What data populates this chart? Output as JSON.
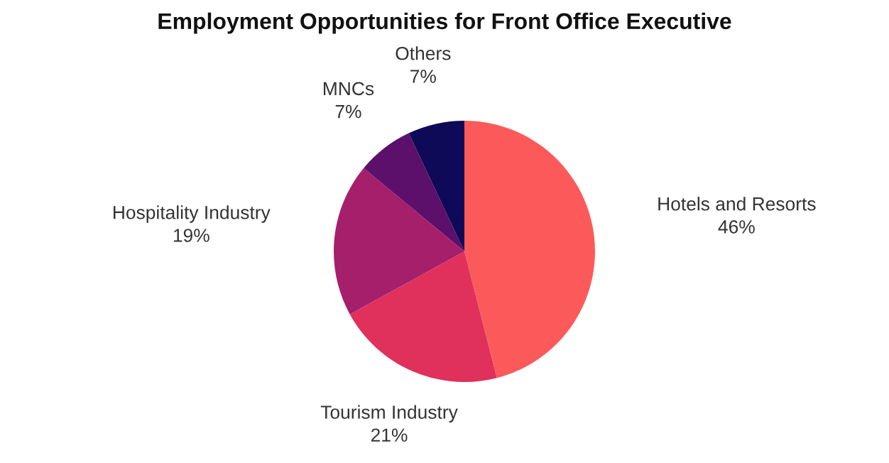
{
  "chart_data": {
    "type": "pie",
    "title": "Employment Opportunities for Front Office Executive",
    "categories": [
      "Hotels and Resorts",
      "Tourism Industry",
      "Hospitality Industry",
      "MNCs",
      "Others"
    ],
    "values": [
      46,
      21,
      19,
      7,
      7
    ],
    "colors": [
      "#fc5a5a",
      "#e0305c",
      "#a61f6b",
      "#5c0f6b",
      "#0f0a57"
    ],
    "value_labels": [
      "46%",
      "21%",
      "19%",
      "7%",
      "7%"
    ],
    "legend": false
  }
}
